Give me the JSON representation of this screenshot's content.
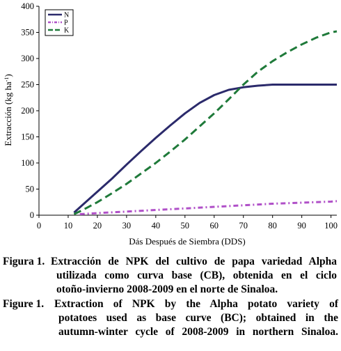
{
  "chart_data": {
    "type": "line",
    "title": "",
    "xlabel": "Dás Después de Siembra (DDS)",
    "ylabel_main": "Extracción (kg ha",
    "ylabel_sup": "-1",
    "ylabel_close": ")",
    "xlim": [
      0,
      102
    ],
    "ylim": [
      0,
      400
    ],
    "xticks": [
      0,
      10,
      20,
      30,
      40,
      50,
      60,
      70,
      80,
      90,
      100
    ],
    "yticks": [
      0,
      50,
      100,
      150,
      200,
      250,
      300,
      350,
      400
    ],
    "grid": false,
    "legend_position": "top-left",
    "series": [
      {
        "name": "N",
        "color": "#2b2a6b",
        "dash": "solid",
        "x": [
          12,
          15,
          20,
          25,
          30,
          35,
          40,
          45,
          50,
          55,
          60,
          65,
          70,
          75,
          80,
          85,
          90,
          95,
          100,
          102
        ],
        "y": [
          5,
          20,
          45,
          70,
          97,
          123,
          148,
          172,
          195,
          215,
          230,
          240,
          245,
          248,
          250,
          250,
          250,
          250,
          250,
          250
        ]
      },
      {
        "name": "P",
        "color": "#b050c8",
        "dash": "dashdot",
        "x": [
          14,
          20,
          30,
          40,
          50,
          60,
          70,
          80,
          90,
          100,
          102
        ],
        "y": [
          2,
          4,
          7,
          10,
          13,
          16,
          19,
          22,
          24,
          26,
          27
        ]
      },
      {
        "name": "K",
        "color": "#1f7a3a",
        "dash": "dashed",
        "x": [
          12,
          15,
          20,
          25,
          30,
          35,
          40,
          45,
          50,
          55,
          60,
          65,
          70,
          75,
          80,
          85,
          90,
          95,
          100,
          102
        ],
        "y": [
          2,
          10,
          25,
          42,
          60,
          80,
          100,
          122,
          145,
          170,
          195,
          222,
          250,
          275,
          295,
          312,
          327,
          340,
          350,
          352
        ]
      }
    ]
  },
  "caption": {
    "es_label": "Figura 1.",
    "es_lines": [
      "Extracción de NPK del cultivo de papa variedad Alpha",
      "utilizada como curva base (CB), obtenida en el ciclo",
      "otoño-invierno 2008-2009 en el norte de Sinaloa."
    ],
    "en_label": "Figure 1.",
    "en_lines": [
      "Extraction of NPK by the Alpha potato variety of",
      "potatoes used as base curve (BC); obtained in the",
      "autumn-winter cycle of 2008-2009 in northern Sinaloa."
    ]
  }
}
